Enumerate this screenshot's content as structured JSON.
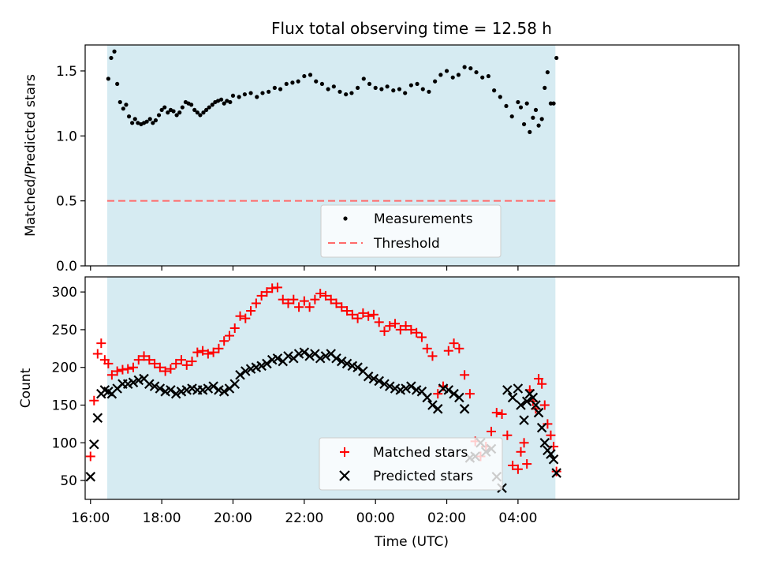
{
  "title": "Flux total observing time = 12.58 h",
  "chart_data": [
    {
      "type": "scatter",
      "panel": "top",
      "title": "Flux total observing time = 12.58 h",
      "xlabel": "",
      "ylabel": "Matched/Predicted stars",
      "x_unit": "hours since 16:00 UTC (x axis shown as clock time)",
      "xlim": [
        -0.15,
        18.2
      ],
      "ylim": [
        0.0,
        1.7
      ],
      "yticks": [
        0.0,
        0.5,
        1.0,
        1.5
      ],
      "ytick_labels": [
        "0.0",
        "0.5",
        "1.0",
        "1.5"
      ],
      "observing_window": [
        0.47,
        13.05
      ],
      "threshold": 0.5,
      "grid": false,
      "legend": {
        "placement": "bottom-center",
        "entries": [
          "Measurements",
          "Threshold"
        ]
      },
      "series": [
        {
          "name": "Measurements",
          "marker": "dot",
          "color": "#000000",
          "x": [
            0.5,
            0.58,
            0.67,
            0.75,
            0.83,
            0.92,
            1.0,
            1.08,
            1.17,
            1.25,
            1.33,
            1.42,
            1.5,
            1.58,
            1.67,
            1.75,
            1.83,
            1.92,
            2.0,
            2.08,
            2.17,
            2.25,
            2.33,
            2.42,
            2.5,
            2.58,
            2.67,
            2.75,
            2.83,
            2.92,
            3.0,
            3.08,
            3.17,
            3.25,
            3.33,
            3.42,
            3.5,
            3.58,
            3.67,
            3.75,
            3.83,
            3.92,
            4.0,
            4.17,
            4.33,
            4.5,
            4.67,
            4.83,
            5.0,
            5.17,
            5.33,
            5.5,
            5.67,
            5.83,
            6.0,
            6.17,
            6.33,
            6.5,
            6.67,
            6.83,
            7.0,
            7.17,
            7.33,
            7.5,
            7.67,
            7.83,
            8.0,
            8.17,
            8.33,
            8.5,
            8.67,
            8.83,
            9.0,
            9.17,
            9.33,
            9.5,
            9.67,
            9.83,
            10.0,
            10.17,
            10.33,
            10.5,
            10.67,
            10.83,
            11.0,
            11.17,
            11.33,
            11.5,
            11.67,
            11.83,
            12.0,
            12.08,
            12.17,
            12.25,
            12.33,
            12.42,
            12.5,
            12.58,
            12.67,
            12.75,
            12.83,
            12.92,
            13.0,
            13.08
          ],
          "y": [
            1.44,
            1.6,
            1.65,
            1.4,
            1.26,
            1.21,
            1.24,
            1.15,
            1.1,
            1.13,
            1.1,
            1.09,
            1.1,
            1.11,
            1.13,
            1.1,
            1.12,
            1.16,
            1.2,
            1.22,
            1.18,
            1.2,
            1.19,
            1.16,
            1.18,
            1.22,
            1.26,
            1.25,
            1.24,
            1.2,
            1.18,
            1.16,
            1.18,
            1.2,
            1.22,
            1.24,
            1.26,
            1.27,
            1.28,
            1.25,
            1.27,
            1.26,
            1.31,
            1.3,
            1.32,
            1.33,
            1.3,
            1.33,
            1.34,
            1.37,
            1.36,
            1.4,
            1.41,
            1.42,
            1.46,
            1.47,
            1.42,
            1.4,
            1.36,
            1.38,
            1.34,
            1.32,
            1.33,
            1.37,
            1.44,
            1.4,
            1.37,
            1.36,
            1.38,
            1.35,
            1.36,
            1.33,
            1.39,
            1.4,
            1.36,
            1.34,
            1.42,
            1.47,
            1.5,
            1.45,
            1.47,
            1.53,
            1.52,
            1.49,
            1.45,
            1.46,
            1.35,
            1.3,
            1.23,
            1.15,
            1.26,
            1.22,
            1.09,
            1.25,
            1.03,
            1.14,
            1.2,
            1.08,
            1.13,
            1.37,
            1.49,
            1.25,
            1.25,
            1.6
          ]
        }
      ]
    },
    {
      "type": "scatter",
      "panel": "bottom",
      "title": "",
      "xlabel": "Time (UTC)",
      "ylabel": "Count",
      "x_unit": "hours since 16:00 UTC (x axis shown as clock time)",
      "xlim": [
        -0.15,
        18.2
      ],
      "ylim": [
        25,
        320
      ],
      "yticks": [
        50,
        100,
        150,
        200,
        250,
        300
      ],
      "ytick_labels": [
        "50",
        "100",
        "150",
        "200",
        "250",
        "300"
      ],
      "xticks": [
        0,
        2,
        4,
        6,
        8,
        10,
        12
      ],
      "xtick_labels": [
        "16:00",
        "18:00",
        "20:00",
        "22:00",
        "00:00",
        "02:00",
        "04:00"
      ],
      "observing_window": [
        0.47,
        13.05
      ],
      "grid": false,
      "legend": {
        "placement": "bottom-center",
        "entries": [
          "Matched stars",
          "Predicted stars"
        ]
      },
      "series": [
        {
          "name": "Matched stars",
          "marker": "plus",
          "color": "#ff0000",
          "x": [
            0.0,
            0.1,
            0.2,
            0.3,
            0.4,
            0.5,
            0.6,
            0.75,
            0.9,
            1.05,
            1.2,
            1.35,
            1.5,
            1.65,
            1.8,
            1.95,
            2.1,
            2.25,
            2.4,
            2.55,
            2.7,
            2.85,
            3.0,
            3.15,
            3.3,
            3.45,
            3.6,
            3.75,
            3.9,
            4.05,
            4.2,
            4.35,
            4.5,
            4.65,
            4.8,
            4.95,
            5.1,
            5.25,
            5.4,
            5.55,
            5.7,
            5.85,
            6.0,
            6.15,
            6.3,
            6.45,
            6.6,
            6.75,
            6.9,
            7.05,
            7.2,
            7.35,
            7.5,
            7.65,
            7.8,
            7.95,
            8.1,
            8.25,
            8.4,
            8.55,
            8.7,
            8.85,
            9.0,
            9.15,
            9.3,
            9.45,
            9.6,
            9.75,
            9.9,
            10.05,
            10.2,
            10.35,
            10.5,
            10.65,
            10.8,
            10.95,
            11.1,
            11.25,
            11.4,
            11.55,
            11.7,
            11.85,
            12.0,
            12.08,
            12.17,
            12.25,
            12.33,
            12.42,
            12.5,
            12.58,
            12.67,
            12.75,
            12.83,
            12.92,
            13.0,
            13.08
          ],
          "y": [
            82,
            156,
            218,
            232,
            210,
            205,
            190,
            195,
            197,
            198,
            200,
            210,
            215,
            210,
            205,
            200,
            195,
            198,
            205,
            210,
            203,
            208,
            220,
            222,
            218,
            220,
            225,
            235,
            242,
            252,
            268,
            265,
            275,
            285,
            295,
            300,
            305,
            306,
            290,
            285,
            290,
            280,
            288,
            280,
            290,
            298,
            295,
            290,
            285,
            280,
            275,
            270,
            265,
            272,
            268,
            270,
            260,
            248,
            255,
            258,
            250,
            255,
            250,
            246,
            240,
            225,
            215,
            165,
            175,
            222,
            232,
            225,
            190,
            165,
            102,
            82,
            95,
            115,
            140,
            138,
            110,
            70,
            65,
            88,
            100,
            72,
            170,
            155,
            145,
            185,
            178,
            150,
            125,
            110,
            95,
            62
          ]
        },
        {
          "name": "Predicted stars",
          "marker": "x",
          "color": "#000000",
          "x": [
            0.0,
            0.1,
            0.2,
            0.3,
            0.4,
            0.5,
            0.6,
            0.75,
            0.9,
            1.05,
            1.2,
            1.35,
            1.5,
            1.65,
            1.8,
            1.95,
            2.1,
            2.25,
            2.4,
            2.55,
            2.7,
            2.85,
            3.0,
            3.15,
            3.3,
            3.45,
            3.6,
            3.75,
            3.9,
            4.05,
            4.2,
            4.35,
            4.5,
            4.65,
            4.8,
            4.95,
            5.1,
            5.25,
            5.4,
            5.55,
            5.7,
            5.85,
            6.0,
            6.15,
            6.3,
            6.45,
            6.6,
            6.75,
            6.9,
            7.05,
            7.2,
            7.35,
            7.5,
            7.65,
            7.8,
            7.95,
            8.1,
            8.25,
            8.4,
            8.55,
            8.7,
            8.85,
            9.0,
            9.15,
            9.3,
            9.45,
            9.6,
            9.75,
            9.9,
            10.05,
            10.2,
            10.35,
            10.5,
            10.65,
            10.8,
            10.95,
            11.1,
            11.25,
            11.4,
            11.55,
            11.7,
            11.85,
            12.0,
            12.08,
            12.17,
            12.25,
            12.33,
            12.42,
            12.5,
            12.58,
            12.67,
            12.75,
            12.83,
            12.92,
            13.0,
            13.08
          ],
          "y": [
            55,
            98,
            133,
            165,
            170,
            168,
            165,
            172,
            178,
            178,
            180,
            183,
            185,
            178,
            175,
            172,
            168,
            170,
            165,
            168,
            170,
            172,
            170,
            170,
            172,
            175,
            170,
            168,
            172,
            178,
            190,
            195,
            198,
            200,
            202,
            205,
            210,
            212,
            208,
            215,
            212,
            218,
            220,
            215,
            218,
            212,
            215,
            218,
            212,
            208,
            205,
            202,
            200,
            195,
            188,
            185,
            182,
            178,
            175,
            172,
            170,
            172,
            175,
            170,
            168,
            160,
            150,
            145,
            172,
            170,
            165,
            160,
            145,
            80,
            82,
            100,
            88,
            92,
            55,
            40,
            170,
            160,
            172,
            150,
            130,
            155,
            165,
            160,
            150,
            140,
            120,
            100,
            90,
            85,
            78,
            60
          ]
        }
      ]
    }
  ]
}
